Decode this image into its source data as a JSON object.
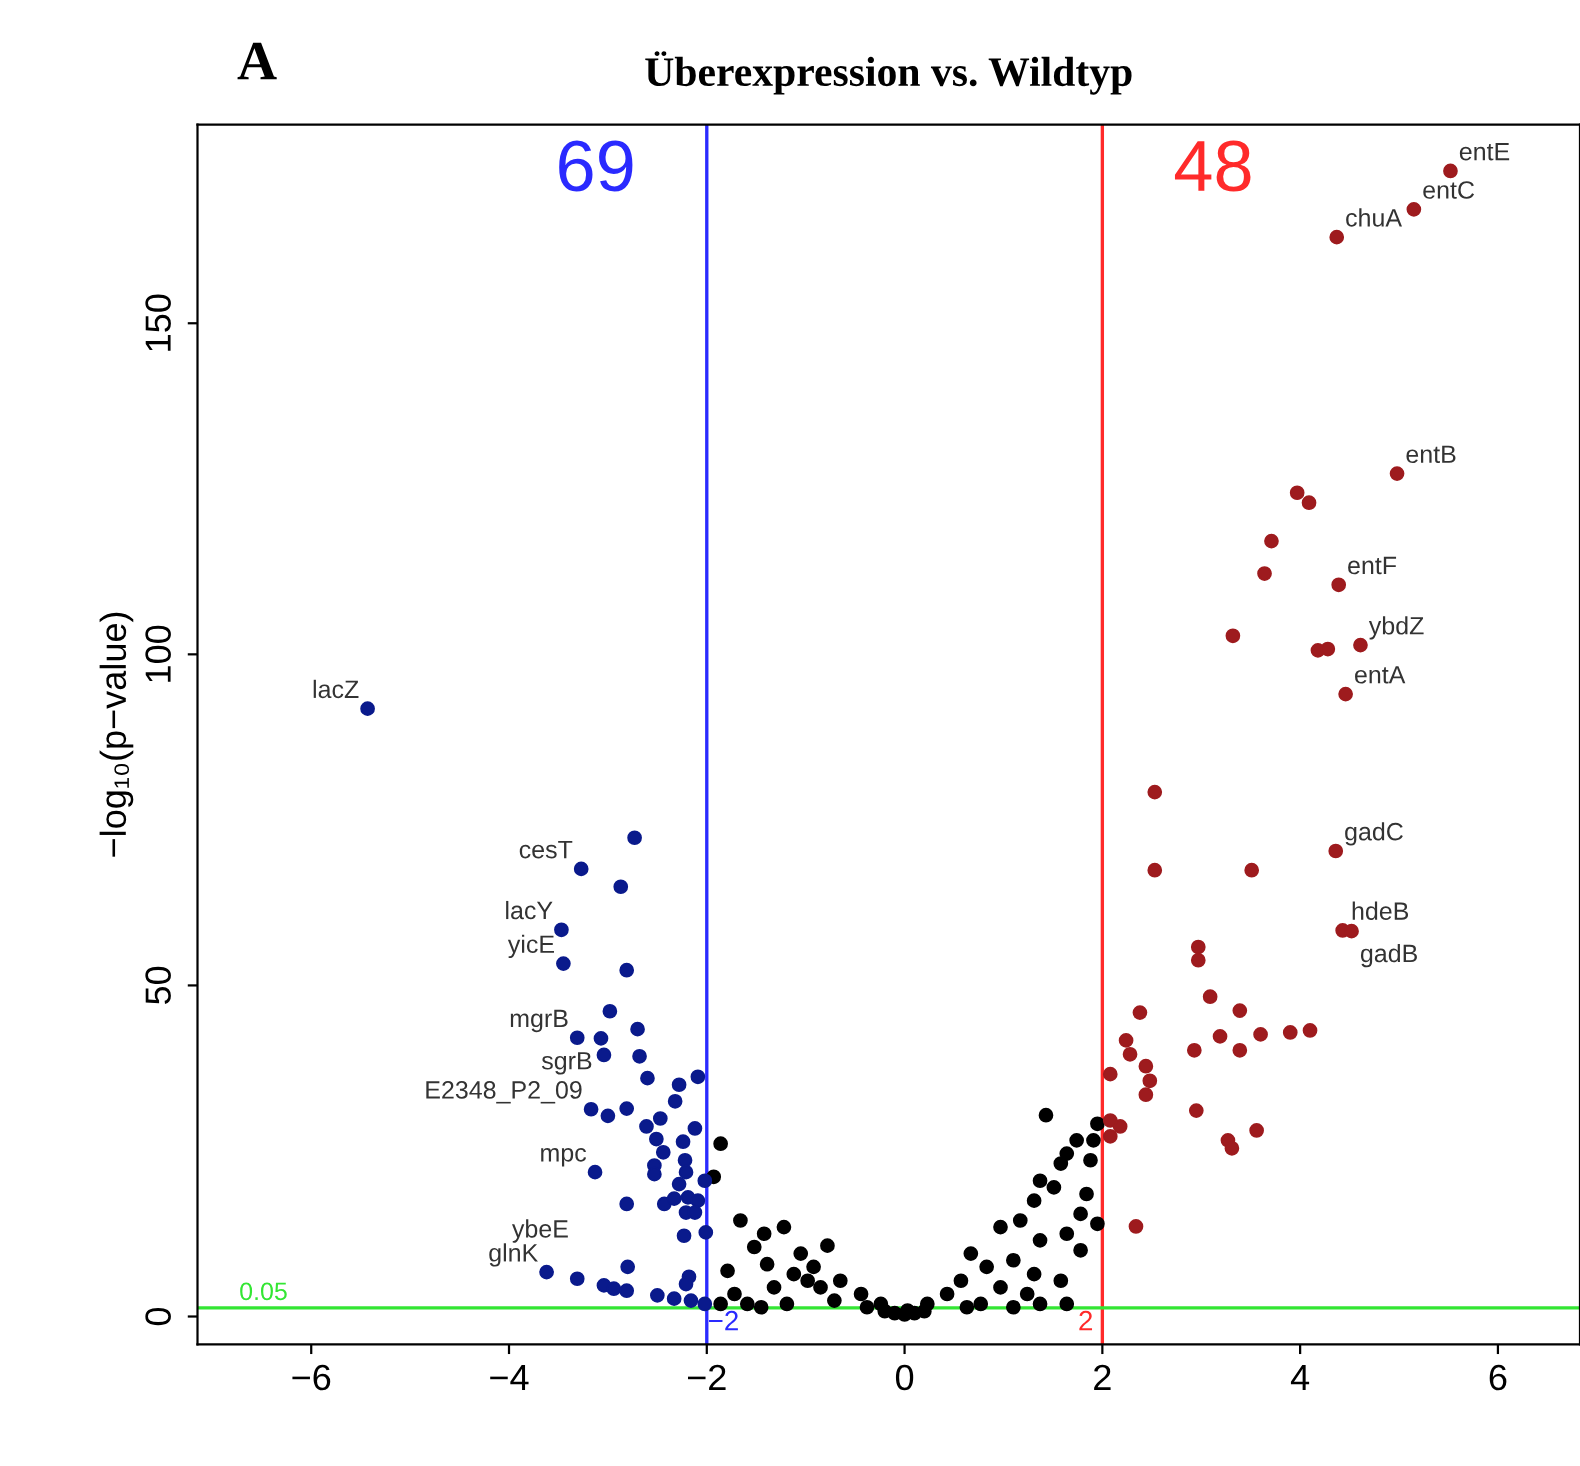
{
  "chart_data": {
    "type": "scatter",
    "title": "Überexpression vs. Wildtyp",
    "ylabel": "−log₁₀(p−value)",
    "xlim": [
      -7.15,
      6.83
    ],
    "ylim": [
      -4.2,
      180
    ],
    "xticks": [
      {
        "value": -6,
        "label": "−6"
      },
      {
        "value": -4,
        "label": "−4"
      },
      {
        "value": -2,
        "label": "−2"
      },
      0,
      2,
      4,
      6
    ],
    "yticks": [
      0,
      50,
      100,
      150
    ],
    "grid": false,
    "legend": false,
    "marker": "circle",
    "series": [
      {
        "color": "#000000",
        "x": [
          -1.86,
          -1.93,
          -1.66,
          -1.42,
          -1.22,
          -0.78,
          -1.79,
          -1.52,
          -1.05,
          -0.92,
          -0.65,
          -0.44,
          -0.24,
          0.03,
          -1.72,
          -1.32,
          -1.12,
          -0.85,
          -1.59,
          -1.19,
          -0.71,
          -0.38,
          -1.39,
          -0.98,
          -1.86,
          -1.45,
          1.43,
          1.74,
          1.64,
          1.95,
          1.88,
          1.58,
          1.37,
          1.31,
          1.51,
          1.78,
          1.17,
          0.97,
          1.95,
          1.64,
          1.78,
          1.37,
          0.67,
          0.83,
          1.1,
          1.31,
          1.58,
          1.64,
          0.43,
          0.57,
          0.23,
          0.97,
          1.24,
          0.77,
          1.37,
          1.1,
          0.63,
          1.84,
          1.91,
          0,
          0.1,
          -0.1,
          0.2,
          -0.2
        ],
        "values": [
          26.1,
          21.1,
          14.5,
          12.5,
          13.5,
          10.7,
          6.9,
          10.5,
          9.5,
          7.5,
          5.4,
          3.4,
          1.9,
          0.9,
          3.4,
          4.4,
          6.4,
          4.4,
          1.9,
          1.9,
          2.4,
          1.4,
          7.9,
          5.4,
          1.9,
          1.4,
          30.4,
          26.6,
          24.6,
          29.1,
          23.6,
          23.1,
          20.5,
          17.5,
          19.5,
          15.5,
          14.5,
          13.5,
          14.0,
          12.5,
          10.0,
          11.5,
          9.5,
          7.5,
          8.5,
          6.4,
          5.4,
          1.9,
          3.4,
          5.4,
          1.9,
          4.4,
          3.4,
          1.9,
          1.9,
          1.4,
          1.4,
          18.5,
          26.6,
          0.3,
          0.5,
          0.5,
          0.8,
          0.8
        ]
      },
      {
        "color": "#0a1a8c",
        "x": [
          -5.43,
          -2.73,
          -3.27,
          -2.87,
          -3.47,
          -3.45,
          -2.81,
          -2.98,
          -3.31,
          -3.07,
          -2.7,
          -3.04,
          -2.68,
          -2.6,
          -2.28,
          -2.09,
          -3.17,
          -3.0,
          -2.81,
          -2.61,
          -2.47,
          -2.32,
          -2.51,
          -2.44,
          -2.24,
          -2.12,
          -3.13,
          -2.53,
          -2.53,
          -2.22,
          -2.21,
          -2.28,
          -2.02,
          -2.81,
          -2.43,
          -2.33,
          -2.19,
          -2.09,
          -2.21,
          -2.12,
          -2.23,
          -2.01,
          -3.62,
          -3.31,
          -2.8,
          -3.04,
          -2.94,
          -2.81,
          -2.5,
          -2.33,
          -2.16,
          -2.18,
          -2.21,
          -2.02
        ],
        "values": [
          91.8,
          72.3,
          67.6,
          64.9,
          58.4,
          53.3,
          52.3,
          46.1,
          42.1,
          42.0,
          43.4,
          39.5,
          39.3,
          36.0,
          35.0,
          36.2,
          31.3,
          30.3,
          31.4,
          28.7,
          29.9,
          32.5,
          26.8,
          24.8,
          26.4,
          28.4,
          21.8,
          22.8,
          21.5,
          23.6,
          21.8,
          20.0,
          20.5,
          17.0,
          17.0,
          17.8,
          18.0,
          17.5,
          15.7,
          15.7,
          12.2,
          12.7,
          6.7,
          5.7,
          7.5,
          4.7,
          4.2,
          3.9,
          3.2,
          2.7,
          2.4,
          6.0,
          4.9,
          1.9
        ]
      },
      {
        "color": "#9e1b1e",
        "x": [
          5.52,
          5.15,
          4.37,
          4.98,
          3.97,
          4.09,
          3.71,
          3.64,
          4.39,
          3.32,
          4.18,
          4.28,
          4.61,
          4.46,
          2.53,
          4.36,
          2.53,
          3.51,
          4.43,
          4.52,
          2.97,
          2.97,
          3.09,
          3.39,
          2.38,
          3.19,
          3.6,
          3.9,
          4.1,
          2.24,
          2.28,
          2.44,
          2.48,
          2.44,
          2.93,
          2.95,
          3.39,
          3.56,
          3.27,
          3.31,
          2.08,
          2.18,
          2.08,
          2.34,
          2.08
        ],
        "values": [
          173.0,
          167.2,
          163.0,
          127.3,
          124.4,
          122.9,
          117.1,
          112.2,
          110.5,
          102.8,
          100.6,
          100.8,
          101.4,
          94.0,
          79.2,
          70.3,
          67.4,
          67.4,
          58.3,
          58.2,
          55.8,
          53.8,
          48.3,
          46.2,
          45.9,
          42.3,
          42.6,
          42.9,
          43.2,
          41.7,
          39.6,
          37.8,
          35.6,
          33.5,
          40.2,
          31.1,
          40.2,
          28.1,
          26.6,
          25.4,
          36.6,
          28.7,
          27.2,
          13.6,
          29.6
        ]
      }
    ],
    "ref_lines": [
      {
        "axis": "x",
        "value": -2,
        "label": "−2",
        "color": "#2a2aff"
      },
      {
        "axis": "x",
        "value": 2,
        "label": "2",
        "color": "#ff2a2a"
      },
      {
        "axis": "y",
        "value": 1.3,
        "color": "#33e633"
      }
    ],
    "annotations": [
      "A",
      "69",
      "48",
      "0.05",
      {
        "text": "lacZ",
        "x": -5.43,
        "y": 91.8
      },
      {
        "text": "cesT",
        "x": -3.27,
        "y": 67.6
      },
      {
        "text": "lacY",
        "x": -3.47,
        "y": 58.4
      },
      {
        "text": "yicE",
        "x": -3.45,
        "y": 53.3
      },
      {
        "text": "mgrB",
        "x": -3.31,
        "y": 42.1
      },
      {
        "text": "sgrB",
        "x": -3.07,
        "y": 42.0
      },
      {
        "text": "E2348_P2_09",
        "x": -3.17,
        "y": 31.3
      },
      {
        "text": "mpc",
        "x": -3.13,
        "y": 21.8
      },
      {
        "text": "glnK",
        "x": -3.62,
        "y": 6.7
      },
      {
        "text": "ybeE",
        "x": -3.31,
        "y": 5.7
      },
      {
        "text": "entE",
        "x": 5.52,
        "y": 173.0
      },
      {
        "text": "entC",
        "x": 5.15,
        "y": 167.2
      },
      {
        "text": "chuA",
        "x": 4.37,
        "y": 163.0
      },
      {
        "text": "entB",
        "x": 4.98,
        "y": 127.3
      },
      {
        "text": "entF",
        "x": 4.39,
        "y": 110.5
      },
      {
        "text": "ybdZ",
        "x": 4.61,
        "y": 101.4
      },
      {
        "text": "entA",
        "x": 4.46,
        "y": 94.0
      },
      {
        "text": "gadC",
        "x": 4.36,
        "y": 70.3
      },
      {
        "text": "hdeB",
        "x": 4.43,
        "y": 58.3
      },
      {
        "text": "gadB",
        "x": 4.52,
        "y": 58.2
      }
    ]
  }
}
